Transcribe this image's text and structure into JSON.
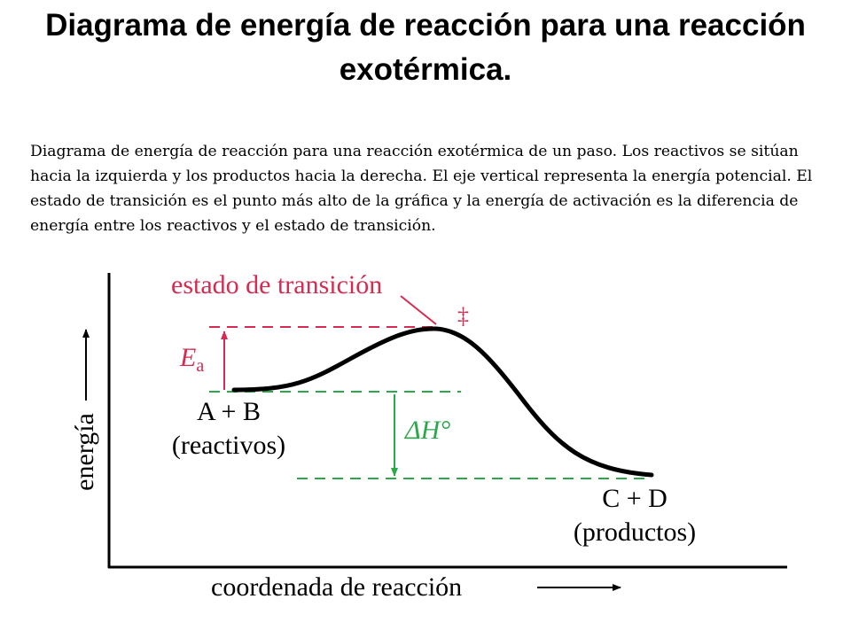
{
  "slide": {
    "title": "Diagrama de energía de reacción para una reacción exotérmica.",
    "caption": "Diagrama de energía de reacción para una reacción exotérmica de un paso. Los reactivos se sitúan hacia la izquierda y los productos hacia la derecha. El eje vertical representa la energía potencial. El estado de transición es el punto más alto de la gráfica y la energía de activación es la diferencia de energía entre los reactivos y el estado de transición."
  },
  "diagram": {
    "x_axis_label": "coordenada de reacción",
    "y_axis_label": "energía",
    "transition_state_label": "estado de transición",
    "transition_state_symbol": "‡",
    "activation_energy_symbol": "E",
    "activation_energy_subscript": "a",
    "enthalpy_symbol": "ΔH°",
    "reactants_formula": "A + B",
    "reactants_label": "(reactivos)",
    "products_formula": "C + D",
    "products_label": "(productos)",
    "colors": {
      "transition_state": "#d62a50",
      "enthalpy": "#2aa84a",
      "curve": "#000000",
      "axes": "#000000"
    }
  }
}
